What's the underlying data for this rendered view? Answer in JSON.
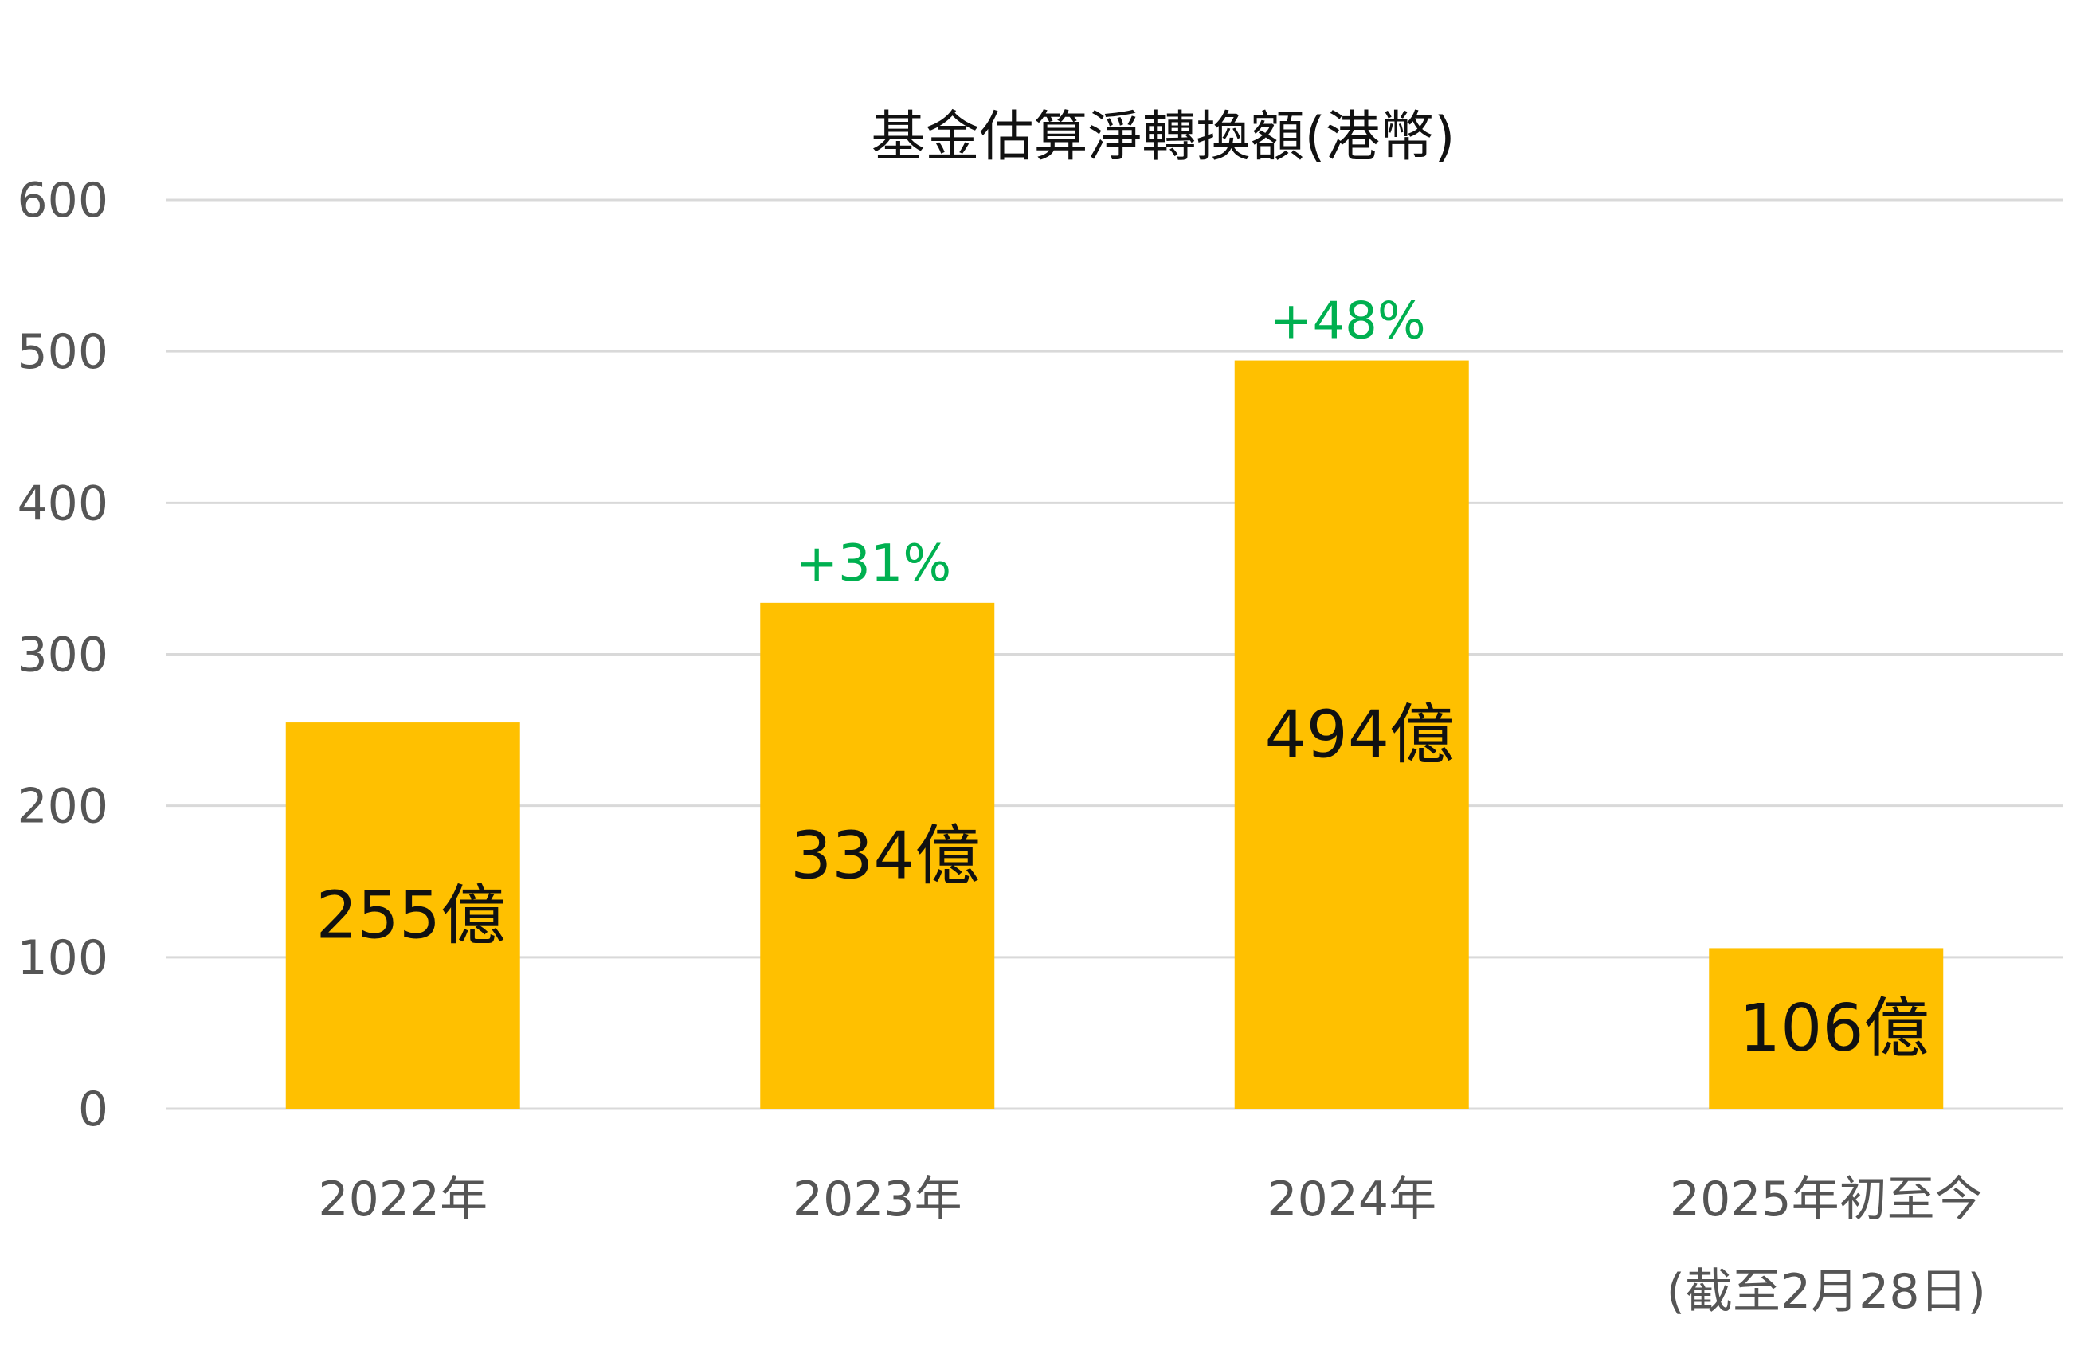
{
  "chart_data": {
    "type": "bar",
    "title": "基金估算淨轉換額(港幣)",
    "categories": [
      "2022年",
      "2023年",
      "2024年",
      "2025年初至今"
    ],
    "category_sublabels": [
      "",
      "",
      "",
      "(截至2月28日)"
    ],
    "values": [
      255,
      334,
      494,
      106
    ],
    "value_labels": [
      "255億",
      "334億",
      "494億",
      "106億"
    ],
    "growth_labels": [
      "",
      "+31%",
      "+48%",
      ""
    ],
    "ylim": [
      0,
      600
    ],
    "yticks": [
      0,
      100,
      200,
      300,
      400,
      500,
      600
    ],
    "grid": true,
    "legend": "none",
    "xlabel": "",
    "ylabel": ""
  },
  "colors": {
    "bar": "#FFC000",
    "growth": "#00B050",
    "grid": "#d9d9d9",
    "axis_text": "#555555",
    "title_text": "#111111"
  }
}
